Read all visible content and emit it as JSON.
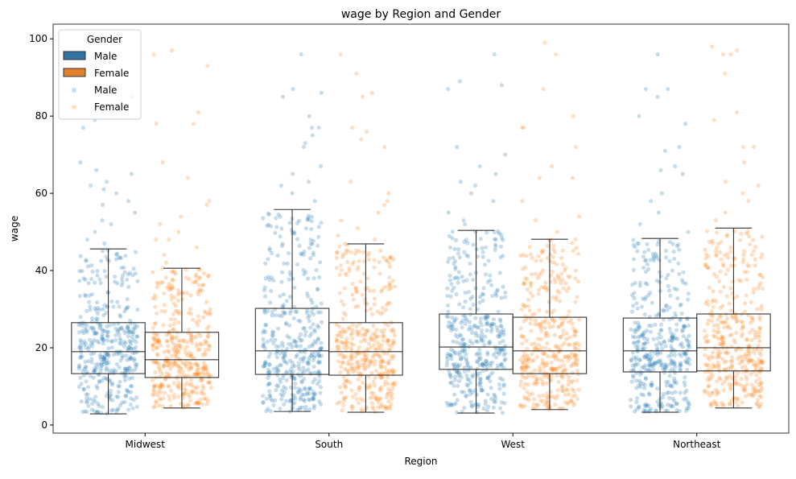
{
  "chart_data": {
    "type": "box+strip",
    "title": "wage by Region and Gender",
    "xlabel": "Region",
    "ylabel": "wage",
    "ylim": [
      -2.1,
      103.8
    ],
    "yticks": [
      0,
      20,
      40,
      60,
      80,
      100
    ],
    "categories": [
      "Midwest",
      "South",
      "West",
      "Northeast"
    ],
    "hue": [
      "Male",
      "Female"
    ],
    "colors": {
      "Male": "#1f77b4",
      "Female": "#ff7f0e"
    },
    "legend": {
      "title": "Gender",
      "placement": "top-left",
      "entries": [
        "Male",
        "Female",
        "Male",
        "Female"
      ]
    },
    "boxes": [
      {
        "region": "Midwest",
        "gender": "Male",
        "whislo": 2.9,
        "q1": 13.3,
        "med": 19.0,
        "q3": 26.5,
        "whishi": 45.6,
        "outliers": [
          85,
          79,
          77,
          68,
          66,
          65,
          63,
          62,
          61,
          60,
          58,
          57,
          55,
          53,
          52,
          50,
          48,
          47
        ]
      },
      {
        "region": "Midwest",
        "gender": "Female",
        "whislo": 4.4,
        "q1": 12.3,
        "med": 16.9,
        "q3": 24.0,
        "whishi": 40.6,
        "outliers": [
          97,
          96,
          93,
          81,
          78,
          78,
          68,
          64,
          58,
          57,
          54,
          52,
          50,
          48,
          48,
          46,
          44,
          42
        ]
      },
      {
        "region": "South",
        "gender": "Male",
        "whislo": 3.5,
        "q1": 13.1,
        "med": 19.2,
        "q3": 30.2,
        "whishi": 55.8,
        "outliers": [
          96,
          87,
          86,
          85,
          80,
          77,
          77,
          75,
          73,
          72,
          67,
          65,
          63,
          62,
          60,
          58
        ]
      },
      {
        "region": "South",
        "gender": "Female",
        "whislo": 3.3,
        "q1": 12.9,
        "med": 19.0,
        "q3": 26.5,
        "whishi": 46.9,
        "outliers": [
          96,
          91,
          86,
          85,
          77,
          76,
          74,
          72,
          63,
          60,
          58,
          57,
          55,
          53,
          51,
          49,
          48
        ]
      },
      {
        "region": "West",
        "gender": "Male",
        "whislo": 3.1,
        "q1": 14.4,
        "med": 20.2,
        "q3": 28.75,
        "whishi": 50.4,
        "outliers": [
          96,
          89,
          88,
          87,
          72,
          70,
          67,
          65,
          63,
          62,
          60,
          58,
          55,
          53,
          52
        ]
      },
      {
        "region": "West",
        "gender": "Female",
        "whislo": 4.0,
        "q1": 13.3,
        "med": 19.2,
        "q3": 27.9,
        "whishi": 48.1,
        "outliers": [
          99,
          96,
          87,
          80,
          77,
          77,
          72,
          67,
          64,
          64,
          58,
          54,
          53,
          50
        ]
      },
      {
        "region": "Northeast",
        "gender": "Male",
        "whislo": 3.3,
        "q1": 13.75,
        "med": 19.2,
        "q3": 27.7,
        "whishi": 48.3,
        "outliers": [
          96,
          87,
          87,
          85,
          80,
          78,
          72,
          71,
          67,
          66,
          65,
          60,
          58,
          55,
          52,
          50
        ]
      },
      {
        "region": "Northeast",
        "gender": "Female",
        "whislo": 4.4,
        "q1": 14.0,
        "med": 20.0,
        "q3": 28.75,
        "whishi": 51.0,
        "outliers": [
          98,
          97,
          96,
          96,
          91,
          81,
          79,
          72,
          72,
          68,
          63,
          62,
          60,
          58,
          55,
          53
        ]
      }
    ]
  }
}
